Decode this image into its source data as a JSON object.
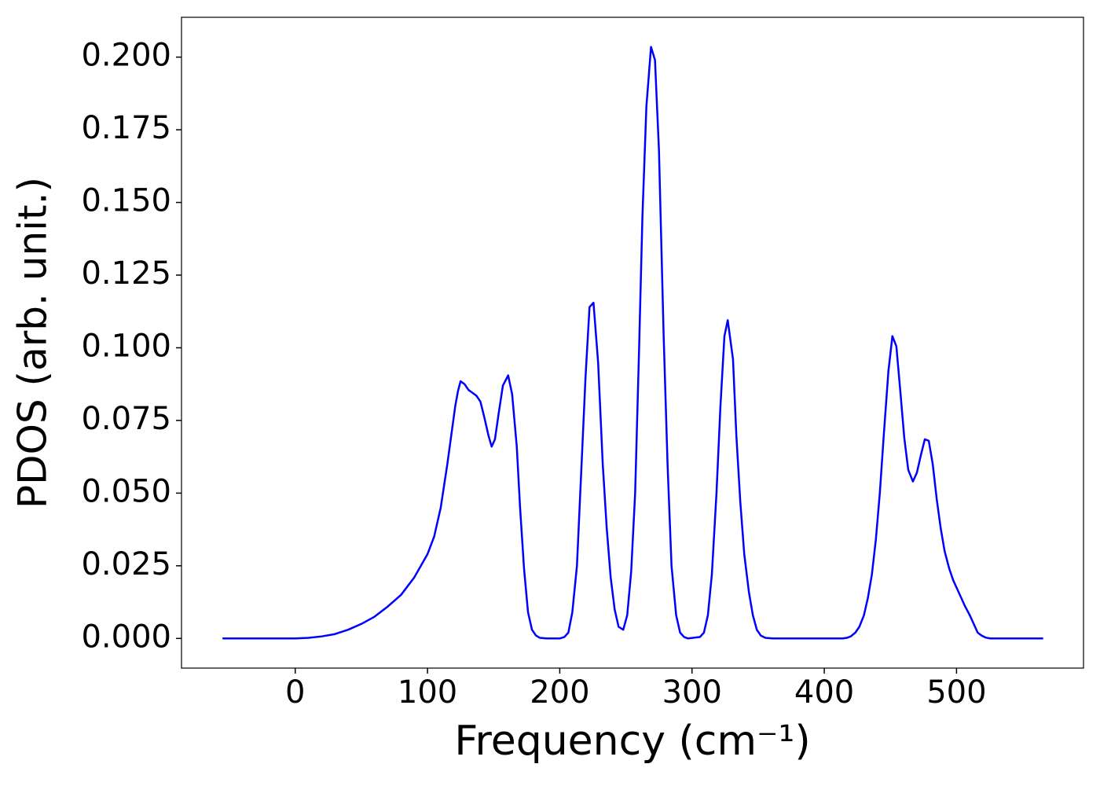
{
  "chart_data": {
    "type": "line",
    "xlabel": "Frequency (cm⁻¹)",
    "ylabel": "PDOS (arb. unit.)",
    "color": "#0000ff",
    "x": [
      -55,
      0,
      10,
      20,
      30,
      40,
      50,
      60,
      70,
      80,
      90,
      100,
      105,
      110,
      115,
      118,
      121,
      123,
      125,
      128,
      131,
      134,
      137,
      140,
      143,
      146,
      148.5,
      151,
      154,
      157,
      161,
      164,
      167.5,
      170,
      173,
      176,
      179,
      182,
      185,
      190,
      200,
      203.5,
      206.5,
      209.5,
      213,
      216.5,
      219.5,
      222.5,
      225.5,
      229,
      232.5,
      235.5,
      238.5,
      241.5,
      244.5,
      248,
      251,
      254,
      257,
      260,
      262.5,
      265.5,
      269,
      272,
      275,
      278.5,
      281.5,
      284.5,
      288,
      291,
      294,
      297,
      306,
      309,
      312,
      315,
      318.5,
      321.5,
      324.5,
      327,
      331,
      333.5,
      336.5,
      339.5,
      343,
      346,
      349,
      352,
      355.5,
      361,
      414,
      417,
      420,
      423.5,
      426.5,
      430,
      433,
      436,
      439,
      442,
      445,
      448.5,
      451.5,
      454.5,
      457.5,
      460.5,
      463.5,
      467,
      470,
      473,
      476,
      479,
      482,
      485,
      488,
      491,
      494.5,
      497.5,
      500.5,
      503.5,
      506.5,
      510,
      513,
      516,
      519,
      522,
      525.5,
      565.5
    ],
    "values": [
      0,
      0,
      0.0002,
      0.0007,
      0.0015,
      0.003,
      0.005,
      0.0075,
      0.011,
      0.015,
      0.021,
      0.029,
      0.035,
      0.045,
      0.06,
      0.07,
      0.08,
      0.085,
      0.0885,
      0.0875,
      0.0855,
      0.0845,
      0.0835,
      0.0815,
      0.076,
      0.07,
      0.066,
      0.0685,
      0.078,
      0.087,
      0.0905,
      0.084,
      0.066,
      0.045,
      0.024,
      0.009,
      0.003,
      0.001,
      0.0002,
      0,
      0,
      0.0005,
      0.002,
      0.009,
      0.025,
      0.06,
      0.09,
      0.114,
      0.1155,
      0.095,
      0.06,
      0.038,
      0.021,
      0.01,
      0.004,
      0.003,
      0.008,
      0.023,
      0.05,
      0.1,
      0.145,
      0.183,
      0.2035,
      0.199,
      0.168,
      0.105,
      0.06,
      0.025,
      0.008,
      0.002,
      0.0005,
      0,
      0.0005,
      0.002,
      0.008,
      0.022,
      0.05,
      0.08,
      0.104,
      0.1095,
      0.096,
      0.07,
      0.047,
      0.029,
      0.016,
      0.008,
      0.003,
      0.001,
      0.0002,
      0,
      0,
      0.0002,
      0.0007,
      0.002,
      0.004,
      0.008,
      0.014,
      0.022,
      0.034,
      0.05,
      0.07,
      0.092,
      0.104,
      0.1005,
      0.085,
      0.069,
      0.058,
      0.054,
      0.057,
      0.063,
      0.0685,
      0.068,
      0.06,
      0.048,
      0.038,
      0.03,
      0.024,
      0.02,
      0.017,
      0.014,
      0.011,
      0.008,
      0.005,
      0.002,
      0.001,
      0.0003,
      0,
      0
    ],
    "xlim": [
      -86,
      596
    ],
    "ylim": [
      -0.0102,
      0.2137
    ],
    "xticks": [
      0,
      100,
      200,
      300,
      400,
      500
    ],
    "yticks": [
      {
        "value": 0,
        "label": "0.000"
      },
      {
        "value": 0.025,
        "label": "0.025"
      },
      {
        "value": 0.05,
        "label": "0.050"
      },
      {
        "value": 0.075,
        "label": "0.075"
      },
      {
        "value": 0.1,
        "label": "0.100"
      },
      {
        "value": 0.125,
        "label": "0.125"
      },
      {
        "value": 0.15,
        "label": "0.150"
      },
      {
        "value": 0.175,
        "label": "0.175"
      },
      {
        "value": 0.2,
        "label": "0.200"
      }
    ]
  }
}
